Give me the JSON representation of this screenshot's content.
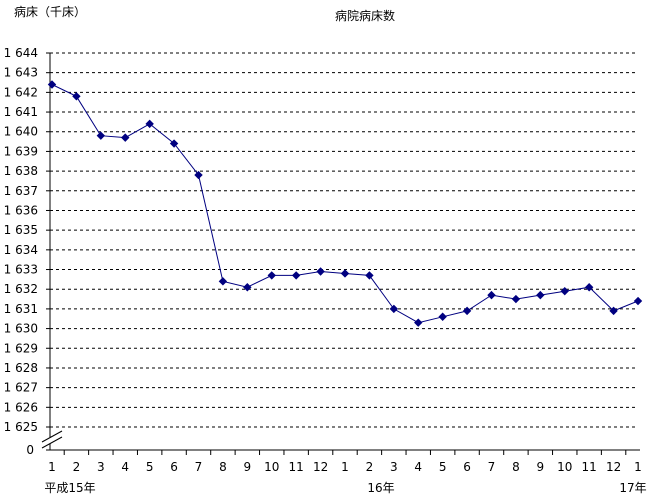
{
  "chart_data": {
    "type": "line",
    "title": "病院病床数",
    "ylabel": "病床（千床）",
    "xlabel": "",
    "categories": [
      "1",
      "2",
      "3",
      "4",
      "5",
      "6",
      "7",
      "8",
      "9",
      "10",
      "11",
      "12",
      "1",
      "2",
      "3",
      "4",
      "5",
      "6",
      "7",
      "8",
      "9",
      "10",
      "11",
      "12",
      "1"
    ],
    "year_labels": [
      {
        "label": "平成15年",
        "start_index": 0
      },
      {
        "label": "16年",
        "start_index": 12
      },
      {
        "label": "17年",
        "start_index": 24
      }
    ],
    "series": [
      {
        "values": [
          1642.4,
          1641.8,
          1639.8,
          1639.7,
          1640.4,
          1639.4,
          1637.8,
          1632.4,
          1632.1,
          1632.7,
          1632.7,
          1632.9,
          1632.8,
          1632.7,
          1631.0,
          1630.3,
          1630.6,
          1630.9,
          1631.7,
          1631.5,
          1631.7,
          1631.9,
          1632.1,
          1630.9,
          1631.4
        ],
        "color": "#000080"
      }
    ],
    "ylim": [
      1625,
      1644
    ],
    "yticks": [
      1625,
      1626,
      1627,
      1628,
      1629,
      1630,
      1631,
      1632,
      1633,
      1634,
      1635,
      1636,
      1637,
      1638,
      1639,
      1640,
      1641,
      1642,
      1643,
      1644
    ],
    "ytick_labels": [
      "1 625",
      "1 626",
      "1 627",
      "1 628",
      "1 629",
      "1 630",
      "1 631",
      "1 632",
      "1 633",
      "1 634",
      "1 635",
      "1 636",
      "1 637",
      "1 638",
      "1 639",
      "1 640",
      "1 641",
      "1 642",
      "1 643",
      "1 644"
    ],
    "y_break_label": "0",
    "y_axis_break": true,
    "grid": true,
    "grid_style": "dashed",
    "marker": "diamond",
    "legend": "none"
  }
}
